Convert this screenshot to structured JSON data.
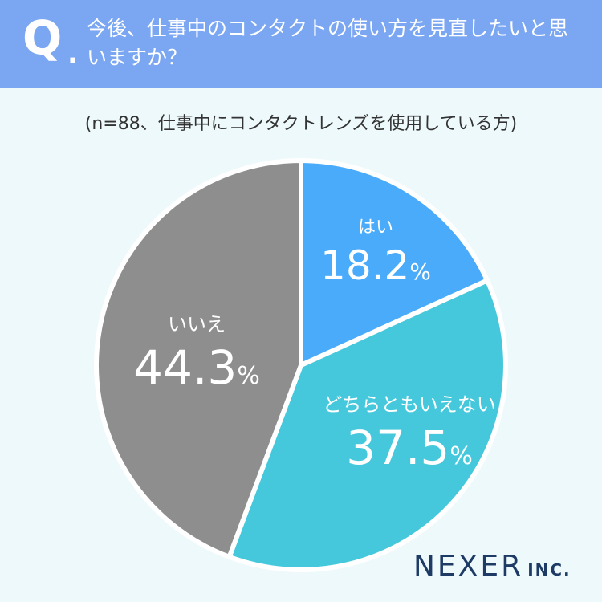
{
  "header": {
    "q_mark": "Q",
    "q_dot": ".",
    "question": "今後、仕事中のコンタクトの使い方を見直したいと思いますか？"
  },
  "note": "(n=88、仕事中にコンタクトレンズを使用している方)",
  "chart_data": {
    "type": "pie",
    "start": "12 o'clock, clockwise",
    "slices": [
      {
        "label": "はい",
        "value": 18.2,
        "color": "#4aabfb"
      },
      {
        "label": "どちらともいえない",
        "value": 37.5,
        "color": "#46c8dc"
      },
      {
        "label": "いいえ",
        "value": 44.3,
        "color": "#8e8e8e"
      }
    ],
    "unit": "%"
  },
  "logo": {
    "main": "NEXER",
    "inc": "INC."
  }
}
